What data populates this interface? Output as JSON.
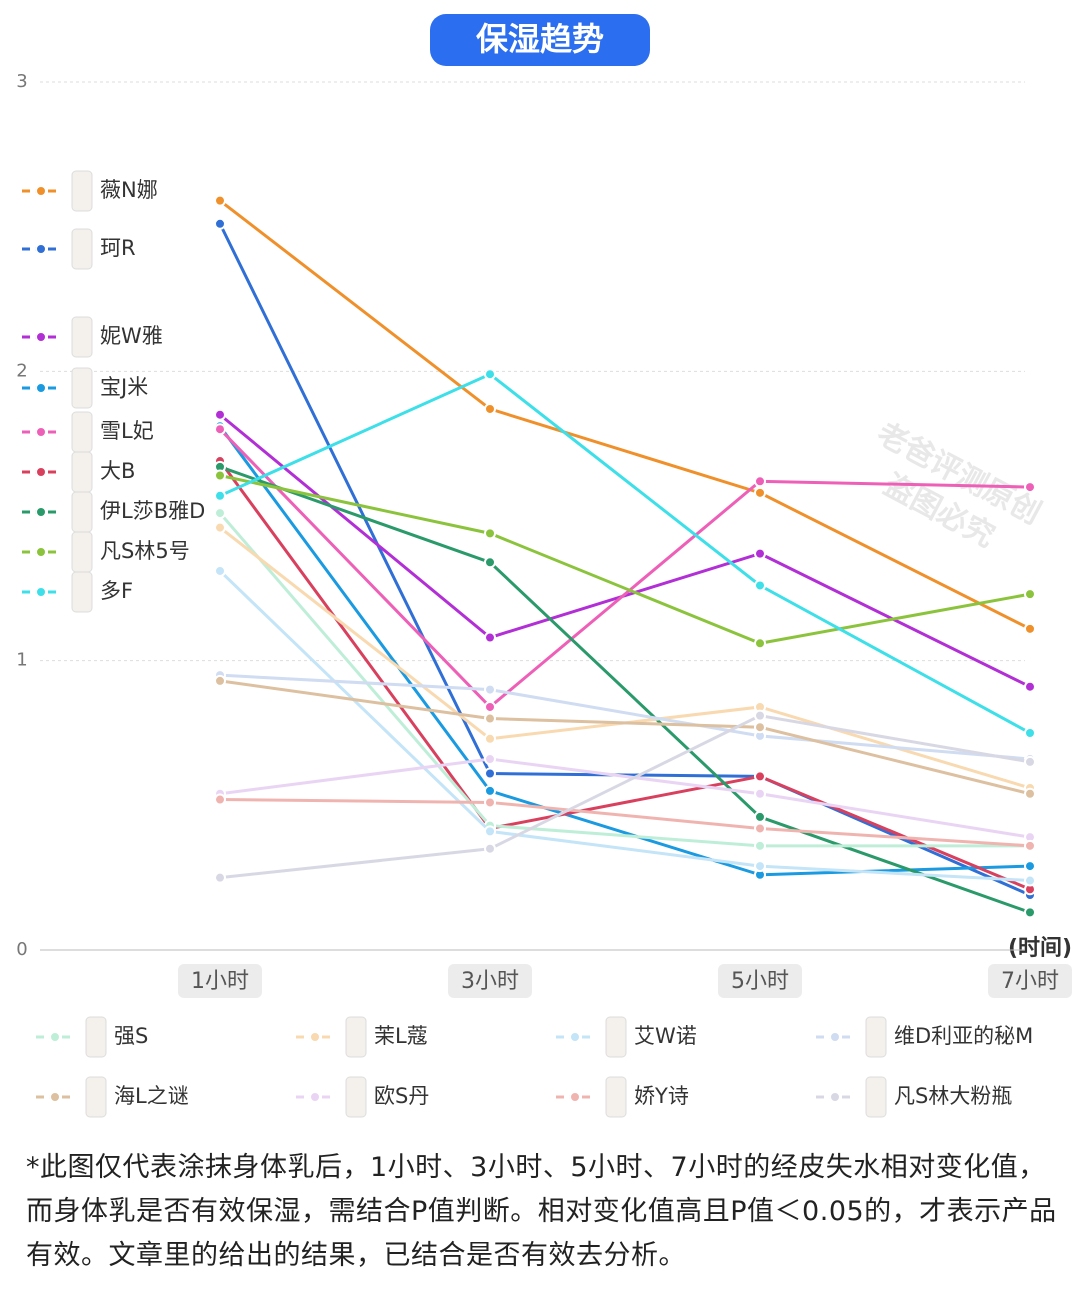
{
  "chart_data": {
    "type": "line",
    "title": "保湿趋势",
    "x_label": "(时间)",
    "categories": [
      "1小时",
      "3小时",
      "5小时",
      "7小时"
    ],
    "ylim": [
      0,
      3
    ],
    "yticks": [
      0,
      1,
      2,
      3
    ],
    "grid": true,
    "series": [
      {
        "name": "薇N娜",
        "color": "#f0902a",
        "values": [
          2.59,
          1.87,
          1.58,
          1.11
        ]
      },
      {
        "name": "珂R",
        "color": "#2f6fd6",
        "values": [
          2.51,
          0.61,
          0.6,
          0.19
        ]
      },
      {
        "name": "妮W雅",
        "color": "#b22fd6",
        "values": [
          1.85,
          1.08,
          1.37,
          0.91
        ]
      },
      {
        "name": "宝J米",
        "color": "#1a9ae0",
        "values": [
          1.81,
          0.55,
          0.26,
          0.29
        ]
      },
      {
        "name": "雪L妃",
        "color": "#ee5fb8",
        "values": [
          1.8,
          0.84,
          1.62,
          1.6
        ]
      },
      {
        "name": "大B",
        "color": "#d8405e",
        "values": [
          1.69,
          0.42,
          0.6,
          0.21
        ]
      },
      {
        "name": "伊L莎B雅D",
        "color": "#2a9a6a",
        "values": [
          1.67,
          1.34,
          0.46,
          0.13
        ]
      },
      {
        "name": "凡S林5号",
        "color": "#8bc43c",
        "values": [
          1.64,
          1.44,
          1.06,
          1.23
        ]
      },
      {
        "name": "多F",
        "color": "#3ddfe8",
        "values": [
          1.57,
          1.99,
          1.26,
          0.75
        ]
      },
      {
        "name": "强S",
        "color": "#bfeed8",
        "values": [
          1.51,
          0.43,
          0.36,
          0.36
        ]
      },
      {
        "name": "茉L蔻",
        "color": "#f8d9b0",
        "values": [
          1.46,
          0.73,
          0.84,
          0.56
        ]
      },
      {
        "name": "艾W诺",
        "color": "#c4e4f8",
        "values": [
          1.31,
          0.41,
          0.29,
          0.24
        ]
      },
      {
        "name": "维D利亚的秘M",
        "color": "#cfdcf2",
        "values": [
          0.95,
          0.9,
          0.74,
          0.66
        ]
      },
      {
        "name": "海L之谜",
        "color": "#dcc0a0",
        "values": [
          0.93,
          0.8,
          0.77,
          0.54
        ]
      },
      {
        "name": "欧S丹",
        "color": "#ead4f4",
        "values": [
          0.54,
          0.66,
          0.54,
          0.39
        ]
      },
      {
        "name": "娇Y诗",
        "color": "#f0b4b0",
        "values": [
          0.52,
          0.51,
          0.42,
          0.36
        ]
      },
      {
        "name": "凡S林大粉瓶",
        "color": "#d8d8e4",
        "values": [
          0.25,
          0.35,
          0.81,
          0.65
        ]
      }
    ]
  },
  "watermark": [
    "老爸评测原创",
    "盗图必究"
  ],
  "footnote": "*此图仅代表涂抹身体乳后，1小时、3小时、5小时、7小时的经皮失水相对变化值，而身体乳是否有效保湿，需结合P值判断。相对变化值高且P值＜0.05的，才表示产品有效。文章里的给出的结果，已结合是否有效去分析。"
}
